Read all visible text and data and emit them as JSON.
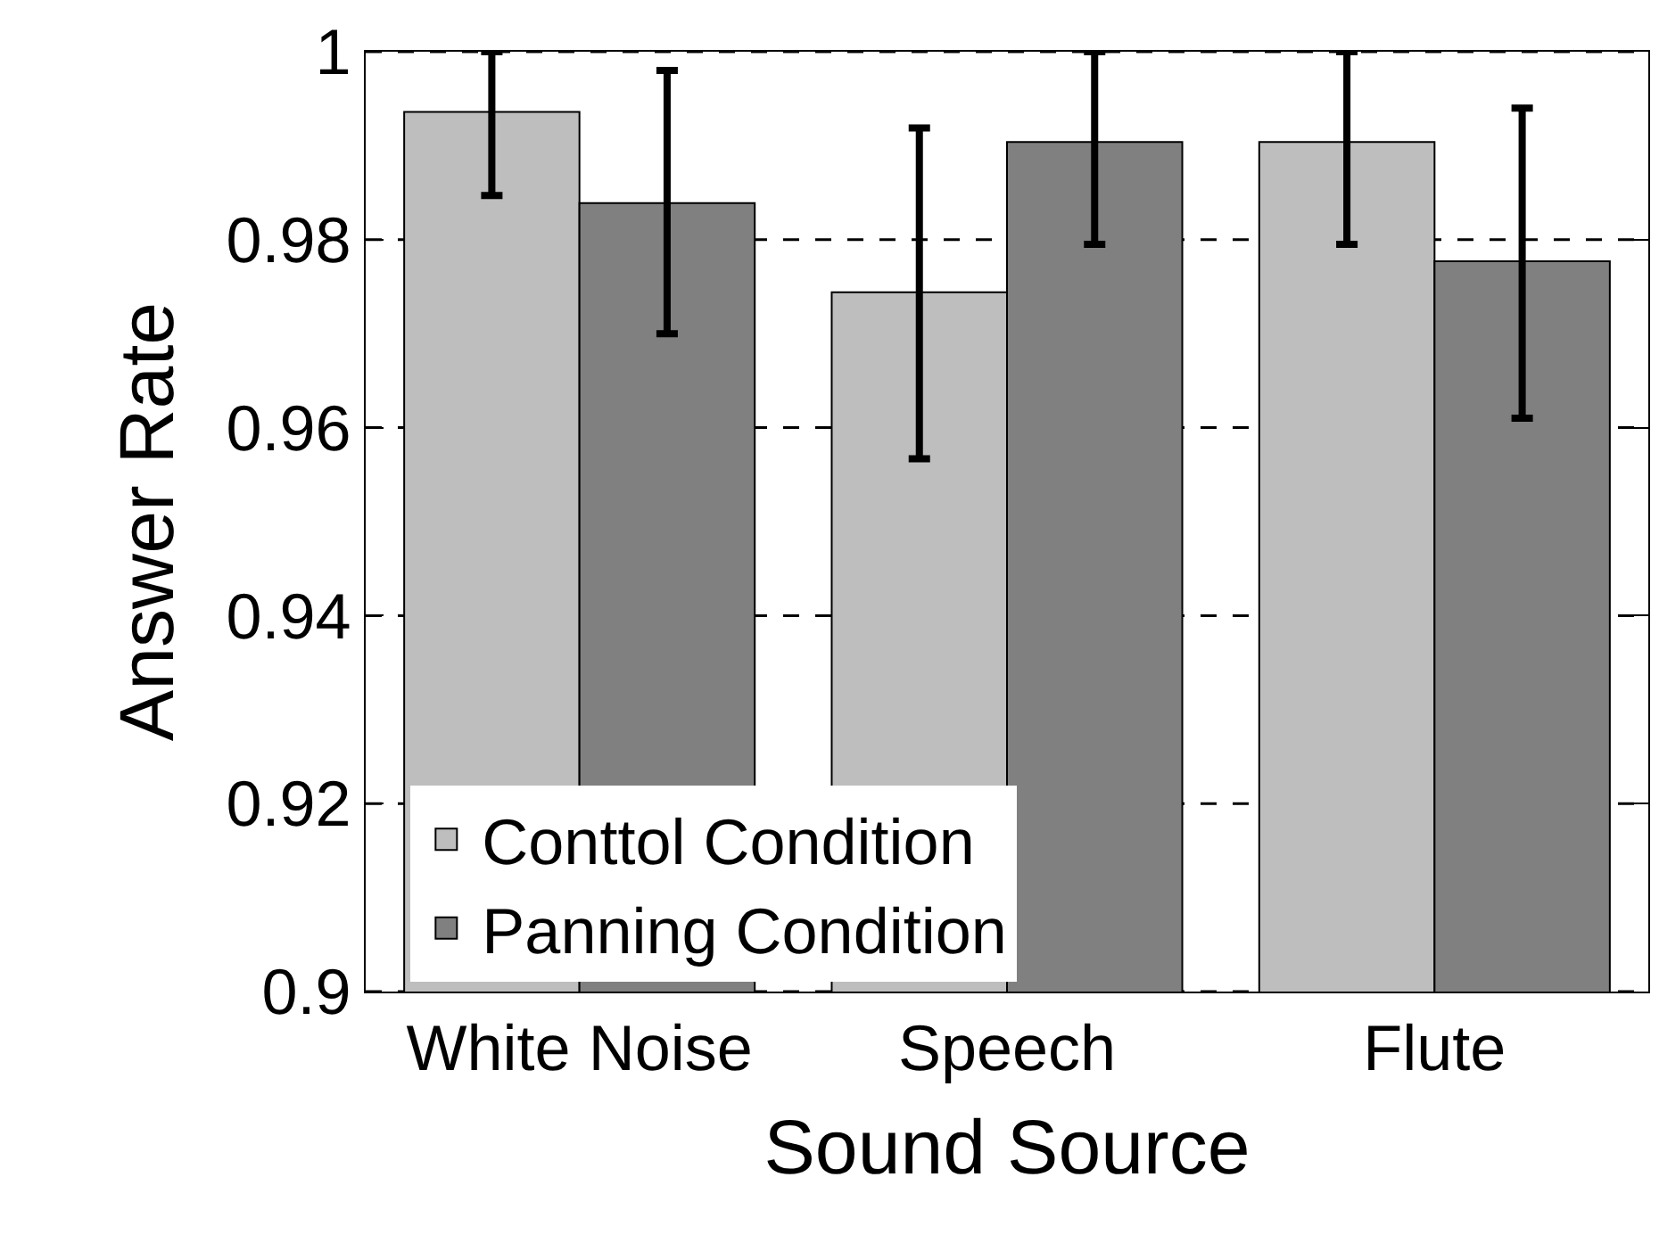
{
  "chart_data": {
    "type": "bar",
    "xlabel": "Sound Source",
    "ylabel": "Answer Rate",
    "categories": [
      "White Noise",
      "Speech",
      "Flute"
    ],
    "series": [
      {
        "name": "Conttol Condition",
        "color": "#bebebe",
        "values": [
          0.9936,
          0.9744,
          0.9904
        ],
        "errors": [
          [
            0.9847,
            1.0
          ],
          [
            0.9567,
            0.9919
          ],
          [
            0.9795,
            1.0
          ]
        ]
      },
      {
        "name": "Panning Condition",
        "color": "#808080",
        "values": [
          0.9839,
          0.9904,
          0.9777
        ],
        "errors": [
          [
            0.97,
            0.998
          ],
          [
            0.9795,
            1.0
          ],
          [
            0.961,
            0.994
          ]
        ]
      }
    ],
    "ylim": [
      0.9,
      1
    ],
    "yticks": [
      0.9,
      0.92,
      0.94,
      0.96,
      0.98,
      1
    ],
    "grid": "y",
    "line_style": "dashed",
    "legend": "bottom left"
  }
}
